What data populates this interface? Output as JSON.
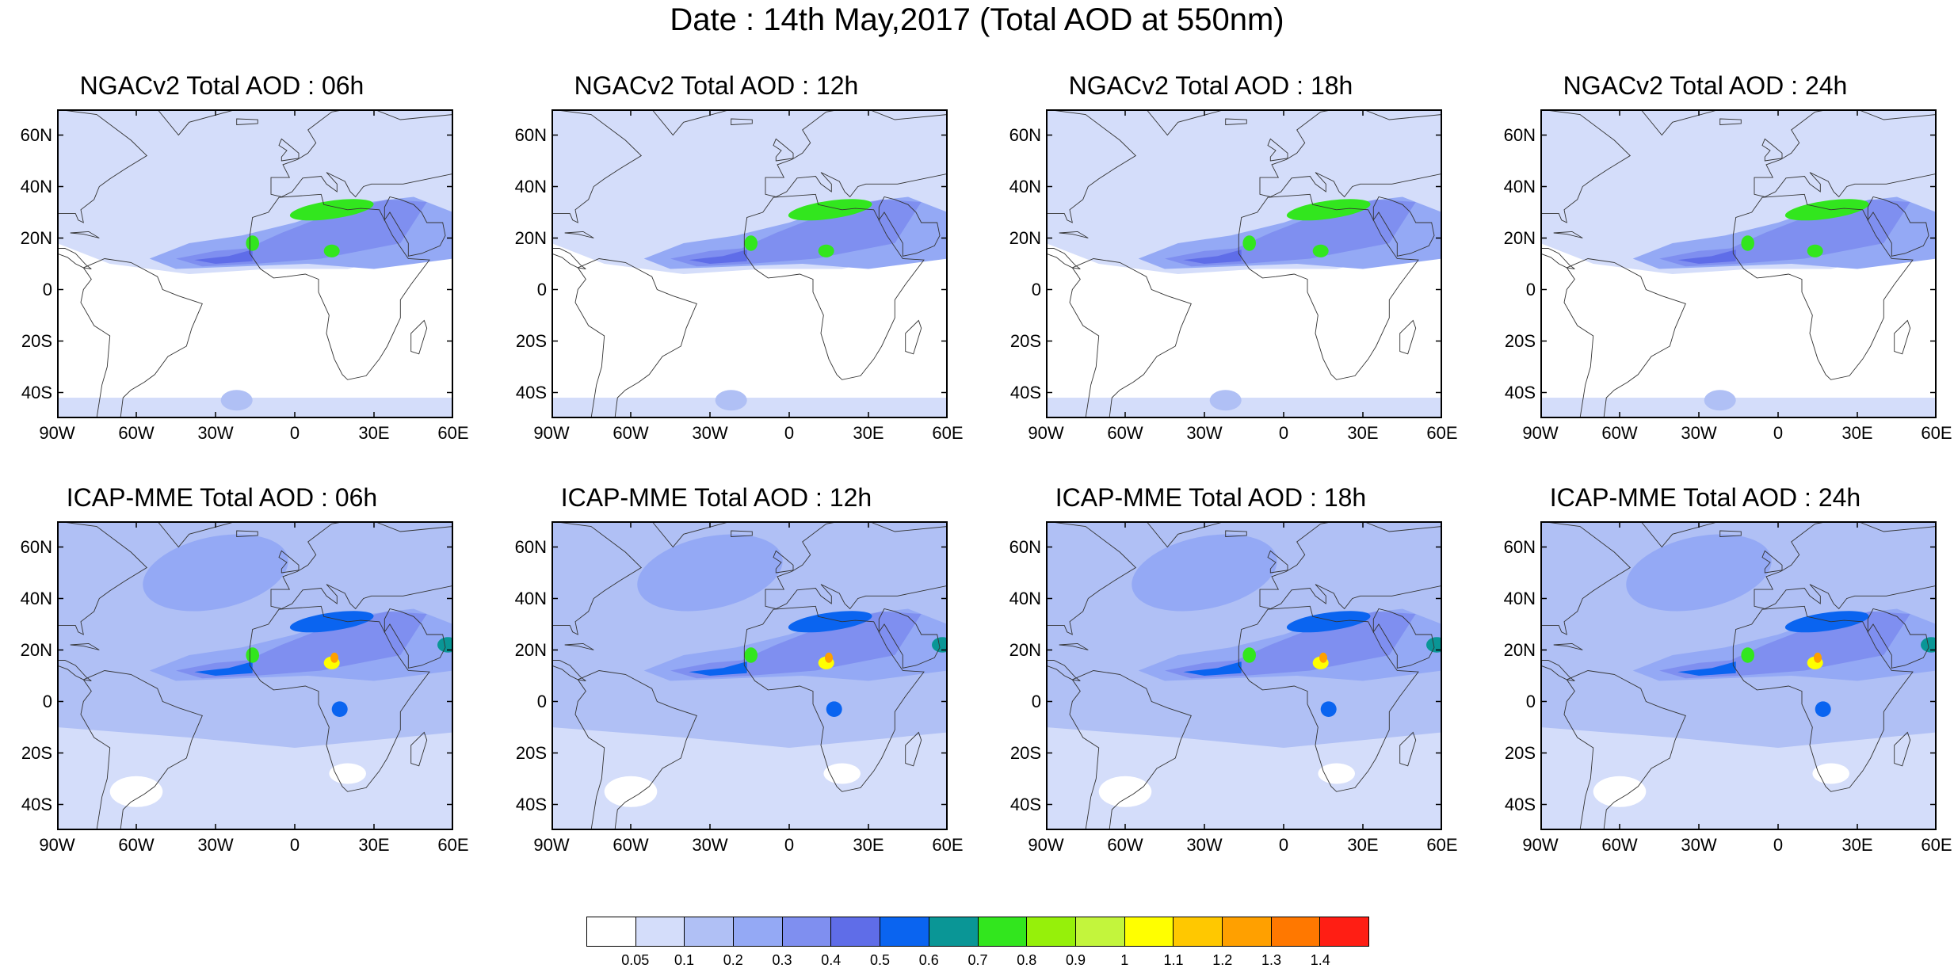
{
  "suptitle": "Date : 14th May,2017 (Total AOD at 550nm)",
  "lat_ticks": [
    "60N",
    "40N",
    "20N",
    "0",
    "20S",
    "40S"
  ],
  "lat_values": [
    60,
    40,
    20,
    0,
    -20,
    -40
  ],
  "lon_ticks": [
    "90W",
    "60W",
    "30W",
    "0",
    "30E",
    "60E"
  ],
  "lon_values": [
    -90,
    -60,
    -30,
    0,
    30,
    60
  ],
  "map_extent": {
    "lon": [
      -90,
      60
    ],
    "lat": [
      -50,
      70
    ]
  },
  "panels": [
    {
      "title": "NGACv2 Total AOD : 06h",
      "model": "NGACv2",
      "hour": 6
    },
    {
      "title": "NGACv2 Total AOD : 12h",
      "model": "NGACv2",
      "hour": 12
    },
    {
      "title": "NGACv2 Total AOD : 18h",
      "model": "NGACv2",
      "hour": 18
    },
    {
      "title": "NGACv2 Total AOD : 24h",
      "model": "NGACv2",
      "hour": 24
    },
    {
      "title": "ICAP-MME Total AOD : 06h",
      "model": "ICAP-MME",
      "hour": 6
    },
    {
      "title": "ICAP-MME Total AOD : 12h",
      "model": "ICAP-MME",
      "hour": 12
    },
    {
      "title": "ICAP-MME Total AOD : 18h",
      "model": "ICAP-MME",
      "hour": 18
    },
    {
      "title": "ICAP-MME Total AOD : 24h",
      "model": "ICAP-MME",
      "hour": 24
    }
  ],
  "colorbar": {
    "labels": [
      "0.05",
      "0.1",
      "0.2",
      "0.3",
      "0.4",
      "0.5",
      "0.6",
      "0.7",
      "0.8",
      "0.9",
      "1",
      "1.1",
      "1.2",
      "1.3",
      "1.4"
    ],
    "colors": [
      "#ffffff",
      "#d4ddfa",
      "#b0c0f5",
      "#94a9f5",
      "#7f8ff0",
      "#5f6de8",
      "#0a64f0",
      "#0a9696",
      "#32e61e",
      "#96f00a",
      "#c3f53c",
      "#ffff00",
      "#ffc800",
      "#ffa000",
      "#ff7800",
      "#ff1e14"
    ]
  }
}
